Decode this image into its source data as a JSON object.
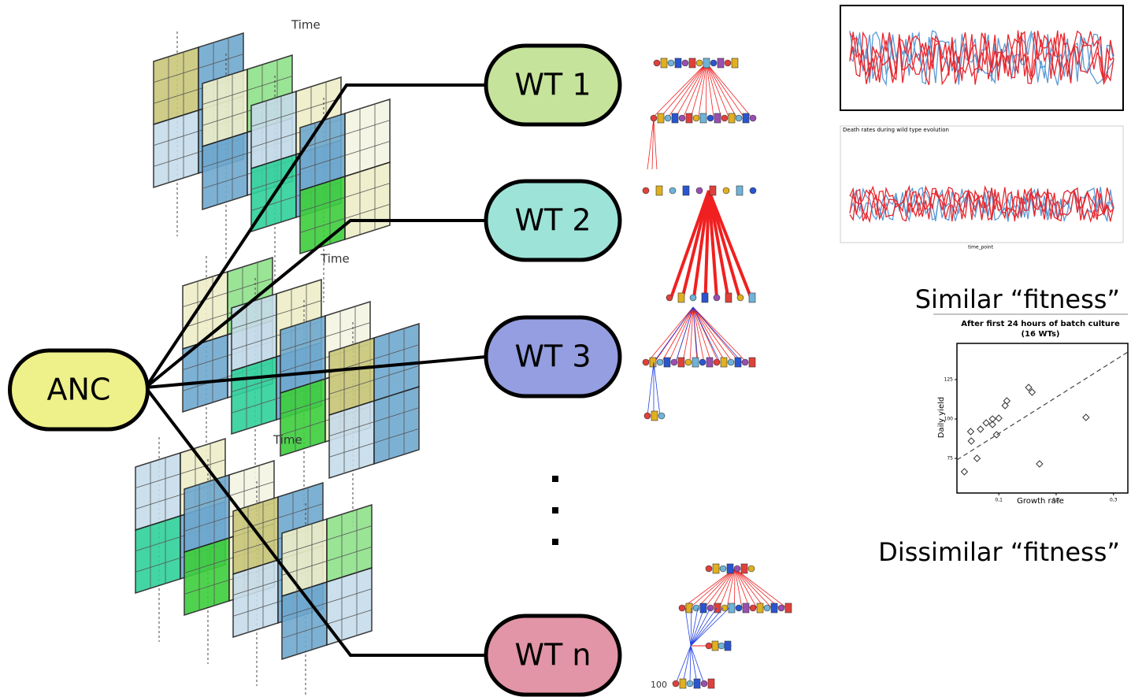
{
  "nodes": {
    "anc": "ANC",
    "wt": [
      "WT 1",
      "WT 2",
      "WT 3",
      "WT n"
    ]
  },
  "time_labels": [
    "Time",
    "Time",
    "Time"
  ],
  "fitness": {
    "similar": "Similar “fitness”",
    "dissimilar": "Dissimilar “fitness”"
  },
  "timeseries": {
    "title": "Death rates during wild type evolution",
    "x_label": "time_point"
  },
  "network_label": "100",
  "scatter": {
    "title": [
      "After first 24 hours of batch culture",
      "(16 WTs)"
    ],
    "x_label": "Growth rate",
    "y_label": "Daily yield",
    "x": [
      0.04,
      0.051,
      0.052,
      0.062,
      0.068,
      0.078,
      0.089,
      0.089,
      0.1,
      0.096,
      0.111,
      0.114,
      0.152,
      0.158,
      0.171,
      0.252
    ],
    "y": [
      66.5,
      92,
      86,
      75,
      93.5,
      97.5,
      100,
      96.5,
      100.5,
      90,
      108.5,
      111.5,
      120,
      117,
      71.5,
      101
    ],
    "xlim": [
      0.027,
      0.325
    ],
    "ylim": [
      53,
      148
    ],
    "xticks": [
      {
        "value": 0.1,
        "label": "0,1"
      },
      {
        "value": 0.2,
        "label": "0,2"
      },
      {
        "value": 0.3,
        "label": "0,3"
      }
    ],
    "yticks": [
      75,
      100,
      125
    ]
  }
}
